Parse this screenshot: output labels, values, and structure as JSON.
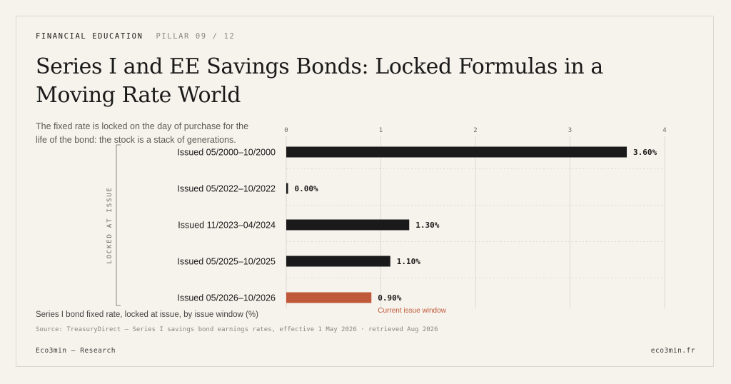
{
  "header": {
    "kicker": "FINANCIAL EDUCATION",
    "pillar": "PILLAR 09 / 12",
    "title": "Series I and EE Savings Bonds: Locked Formulas in a Moving Rate World",
    "lede": "The fixed rate is locked on the day of purchase for the life of the bond: the stock is a stack of generations."
  },
  "footer": {
    "caption": "Series I bond fixed rate, locked at issue, by issue window (%)",
    "source": "Source: TreasuryDirect — Series I savings bond earnings rates, effective 1 May 2026 · retrieved Aug 2026",
    "brand": "Eco3min — Research",
    "site": "eco3min.fr"
  },
  "colors": {
    "bar": "#1a1a1a",
    "highlight": "#c0583a",
    "grid": "#dedad2",
    "bracket": "#8a867e"
  },
  "chart_data": {
    "type": "bar",
    "orientation": "horizontal",
    "categories": [
      "Issued 05/2000–10/2000",
      "Issued 05/2022–10/2022",
      "Issued 11/2023–04/2024",
      "Issued 05/2025–10/2025",
      "Issued 05/2026–10/2026"
    ],
    "values": [
      3.6,
      0.0,
      1.3,
      1.1,
      0.9
    ],
    "value_labels": [
      "3.60%",
      "0.00%",
      "1.30%",
      "1.10%",
      "0.90%"
    ],
    "highlight_index": 4,
    "highlight_label": "Current issue window",
    "xlim": [
      0,
      4
    ],
    "xticks": [
      0,
      1,
      2,
      3,
      4
    ],
    "bracket_label": "LOCKED AT ISSUE",
    "grid": true
  }
}
